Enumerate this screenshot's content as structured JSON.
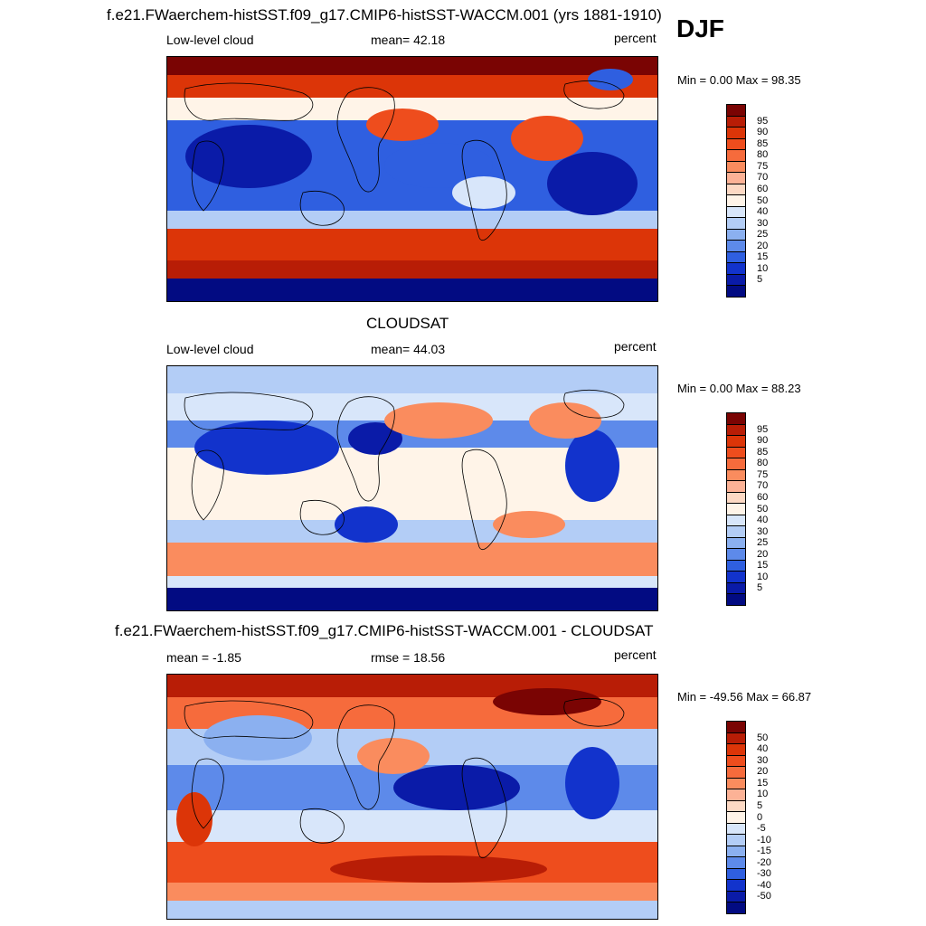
{
  "season": "DJF",
  "panels": [
    {
      "title": "f.e21.FWaerchem-histSST.f09_g17.CMIP6-histSST-WACCM.001 (yrs 1881-1910)",
      "left_label": "Low-level cloud",
      "center_label": "mean=  42.18",
      "right_label": "percent",
      "minmax": "Min =   0.00 Max =  98.35",
      "colorbar_labels": [
        "95",
        "90",
        "85",
        "80",
        "75",
        "70",
        "60",
        "50",
        "40",
        "30",
        "25",
        "20",
        "15",
        "10",
        "5"
      ],
      "colors": [
        "#7a0403",
        "#b81d06",
        "#dc3508",
        "#ee4d1d",
        "#f66b3c",
        "#fa8c5e",
        "#fcb296",
        "#fdd9c4",
        "#fff4e8",
        "#d8e6fa",
        "#b3cdf6",
        "#8bb0f0",
        "#5d8aea",
        "#2f5fe0",
        "#1233cc",
        "#0a1ba8",
        "#020b82"
      ],
      "mean_fraction": 0.42
    },
    {
      "title": "CLOUDSAT",
      "left_label": "Low-level cloud",
      "center_label": "mean=  44.03",
      "right_label": "percent",
      "minmax": "Min =   0.00 Max =  88.23",
      "colorbar_labels": [
        "95",
        "90",
        "85",
        "80",
        "75",
        "70",
        "60",
        "50",
        "40",
        "30",
        "25",
        "20",
        "15",
        "10",
        "5"
      ],
      "colors": [
        "#7a0403",
        "#b81d06",
        "#dc3508",
        "#ee4d1d",
        "#f66b3c",
        "#fa8c5e",
        "#fcb296",
        "#fdd9c4",
        "#fff4e8",
        "#d8e6fa",
        "#b3cdf6",
        "#8bb0f0",
        "#5d8aea",
        "#2f5fe0",
        "#1233cc",
        "#0a1ba8",
        "#020b82"
      ],
      "mean_fraction": 0.44
    },
    {
      "title": "f.e21.FWaerchem-histSST.f09_g17.CMIP6-histSST-WACCM.001 - CLOUDSAT",
      "left_label": "mean =  -1.85",
      "center_label": "rmse =  18.56",
      "right_label": "percent",
      "minmax": "Min = -49.56 Max =  66.87",
      "colorbar_labels": [
        "50",
        "40",
        "30",
        "20",
        "15",
        "10",
        "5",
        "0",
        "-5",
        "-10",
        "-15",
        "-20",
        "-30",
        "-40",
        "-50"
      ],
      "colors": [
        "#7a0403",
        "#b81d06",
        "#dc3508",
        "#ee4d1d",
        "#f66b3c",
        "#fa8c5e",
        "#fcb296",
        "#fdd9c4",
        "#fff4e8",
        "#d8e6fa",
        "#b3cdf6",
        "#8bb0f0",
        "#5d8aea",
        "#2f5fe0",
        "#1233cc",
        "#0a1ba8",
        "#020b82"
      ],
      "mean_fraction": 0.5
    }
  ]
}
